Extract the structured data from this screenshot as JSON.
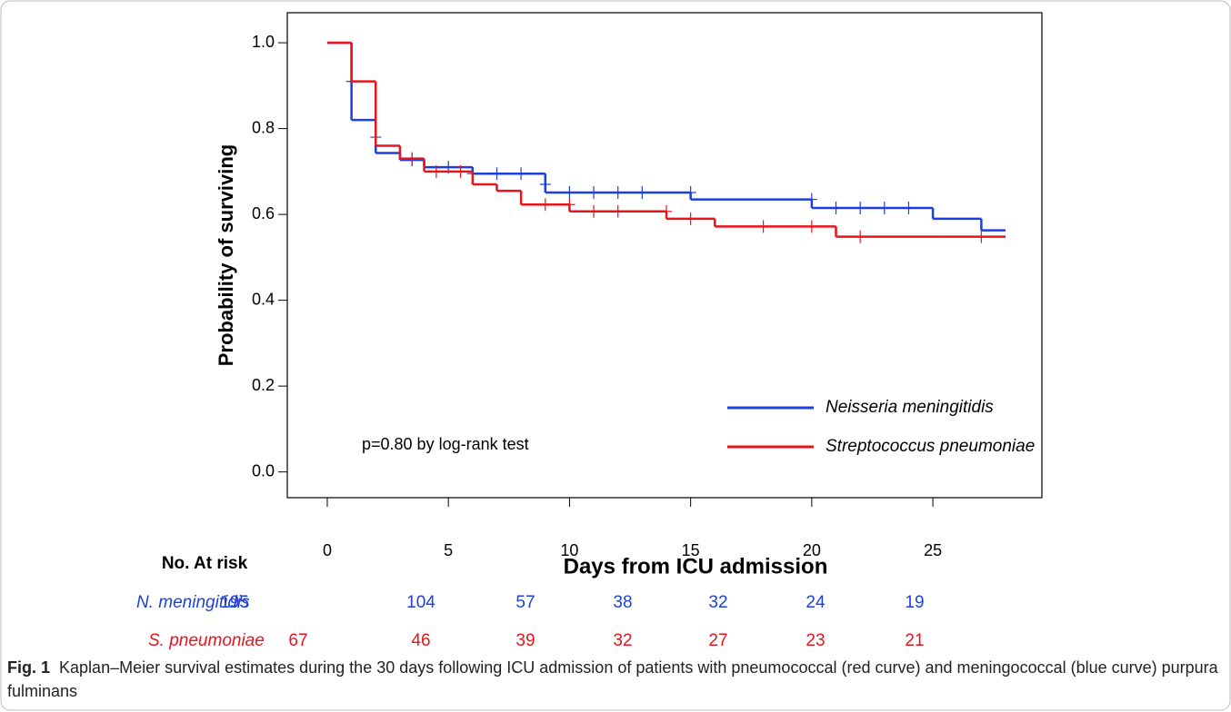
{
  "chart_data": {
    "type": "step",
    "y_label": "Probability of surviving",
    "x_label": "Days from ICU admission",
    "annotation": "p=0.80 by log-rank test",
    "xlim": [
      -1.65,
      29.5
    ],
    "xticks": [
      0,
      5,
      10,
      15,
      20,
      25
    ],
    "ylim": [
      -0.06,
      1.07
    ],
    "yticks": [
      {
        "value": 0,
        "label": "0.0"
      },
      0.2,
      0.4,
      0.6,
      0.8,
      {
        "value": 1,
        "label": "1.0"
      }
    ],
    "legend": "bottom-right",
    "series": [
      {
        "name": "Neisseria meningitidis",
        "color": "#1d3fe0",
        "x": [
          0,
          1,
          2,
          3,
          4,
          6,
          9,
          15,
          20,
          25,
          27,
          28
        ],
        "values": [
          1.0,
          0.82,
          0.743,
          0.727,
          0.71,
          0.695,
          0.651,
          0.635,
          0.615,
          0.59,
          0.563,
          0.563
        ],
        "censored_x": [
          1,
          2,
          3.5,
          5,
          6,
          7,
          8,
          9,
          10,
          11,
          12,
          13,
          15,
          20,
          21,
          22,
          23,
          24
        ],
        "censored_values": [
          0.91,
          0.78,
          0.727,
          0.71,
          0.695,
          0.695,
          0.695,
          0.67,
          0.651,
          0.651,
          0.651,
          0.651,
          0.651,
          0.635,
          0.615,
          0.615,
          0.615,
          0.615
        ]
      },
      {
        "name": "Streptococcus pneumoniae",
        "color": "#e8141b",
        "x": [
          0,
          1,
          2,
          3,
          4,
          6,
          7,
          8,
          10,
          14,
          16,
          21,
          28
        ],
        "values": [
          1.0,
          0.91,
          0.76,
          0.73,
          0.7,
          0.67,
          0.655,
          0.623,
          0.607,
          0.59,
          0.572,
          0.548,
          0.548
        ],
        "censored_x": [
          3.5,
          4.5,
          5.5,
          9,
          10,
          11,
          12,
          14,
          15,
          18,
          20,
          22,
          27
        ],
        "censored_values": [
          0.73,
          0.7,
          0.7,
          0.623,
          0.623,
          0.607,
          0.607,
          0.607,
          0.59,
          0.572,
          0.572,
          0.548,
          0.548
        ]
      }
    ]
  },
  "risk_table": {
    "title": "No. At risk",
    "rows": [
      {
        "name": "N. meningitidis",
        "color": "#1d3fe0",
        "values": [
          195,
          104,
          57,
          38,
          32,
          24,
          19
        ]
      },
      {
        "name": "S. pneumoniae",
        "color": "#e8141b",
        "values": [
          67,
          46,
          39,
          32,
          27,
          23,
          21
        ]
      }
    ]
  },
  "caption": {
    "label": "Fig. 1",
    "text": "Kaplan–Meier survival estimates during the 30 days following ICU admission of patients with pneumococcal (red curve) and meningococcal (blue curve) purpura fulminans"
  }
}
